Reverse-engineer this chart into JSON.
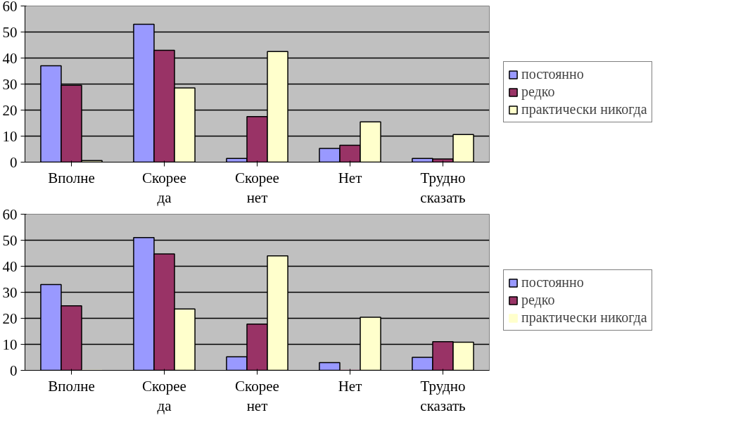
{
  "chart_data": [
    {
      "type": "bar",
      "categories": [
        "Вполне",
        "Скорее да",
        "Скорее нет",
        "Нет",
        "Трудно сказать"
      ],
      "ylim": [
        0,
        60
      ],
      "yticks": [
        0,
        10,
        20,
        30,
        40,
        50,
        60
      ],
      "grid": "y",
      "legend": "right",
      "series": [
        {
          "name": "постоянно",
          "color": "#9999ff",
          "values": [
            37,
            53,
            1.4,
            5.3,
            1.4
          ]
        },
        {
          "name": "редко",
          "color": "#993366",
          "values": [
            29.5,
            43,
            17.5,
            6.5,
            1.2
          ]
        },
        {
          "name": "практически никогда",
          "color": "#ffffcc",
          "values": [
            0.6,
            28.5,
            42.5,
            15.5,
            10.6
          ]
        }
      ]
    },
    {
      "type": "bar",
      "categories": [
        "Вполне",
        "Скорее да",
        "Скорее нет",
        "Нет",
        "Трудно сказать"
      ],
      "ylim": [
        0,
        60
      ],
      "yticks": [
        0,
        10,
        20,
        30,
        40,
        50,
        60
      ],
      "grid": "y",
      "legend": "right",
      "series": [
        {
          "name": "постоянно",
          "color": "#9999ff",
          "values": [
            33,
            51,
            5.2,
            3,
            5
          ]
        },
        {
          "name": "редко",
          "color": "#993366",
          "values": [
            24.8,
            44.7,
            17.8,
            0,
            11
          ]
        },
        {
          "name": "практически никогда",
          "color": "#ffffcc",
          "values": [
            0,
            23.6,
            44,
            20.4,
            10.8
          ]
        }
      ]
    }
  ]
}
